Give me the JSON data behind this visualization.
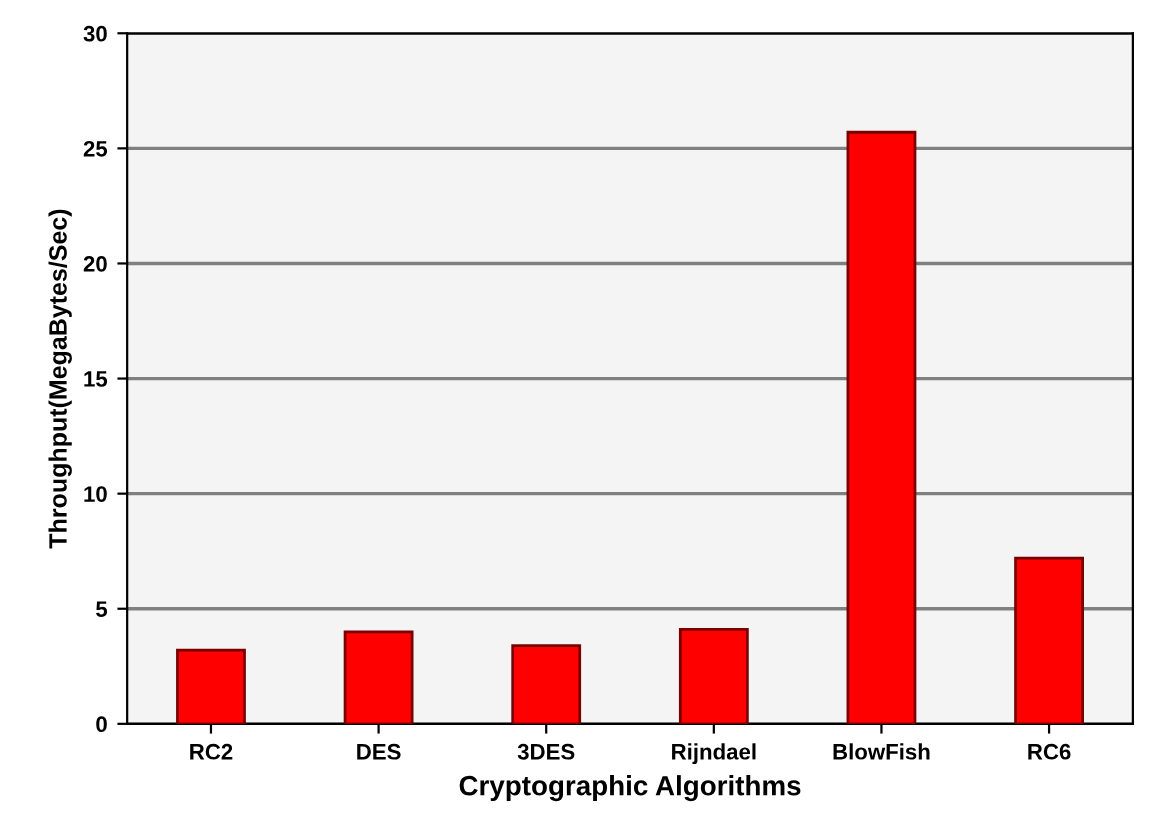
{
  "chart_data": {
    "type": "bar",
    "xlabel": "Cryptographic Algorithms",
    "ylabel": "Throughput(MegaBytes/Sec)",
    "categories": [
      "RC2",
      "DES",
      "3DES",
      "Rijndael",
      "BlowFish",
      "RC6"
    ],
    "values": [
      3.2,
      4.0,
      3.4,
      4.1,
      25.7,
      7.2
    ],
    "color": "#ff0000",
    "ylim": [
      0,
      30
    ],
    "yticks": [
      0,
      5,
      10,
      15,
      20,
      25,
      30
    ],
    "grid": "y",
    "legend": false
  }
}
